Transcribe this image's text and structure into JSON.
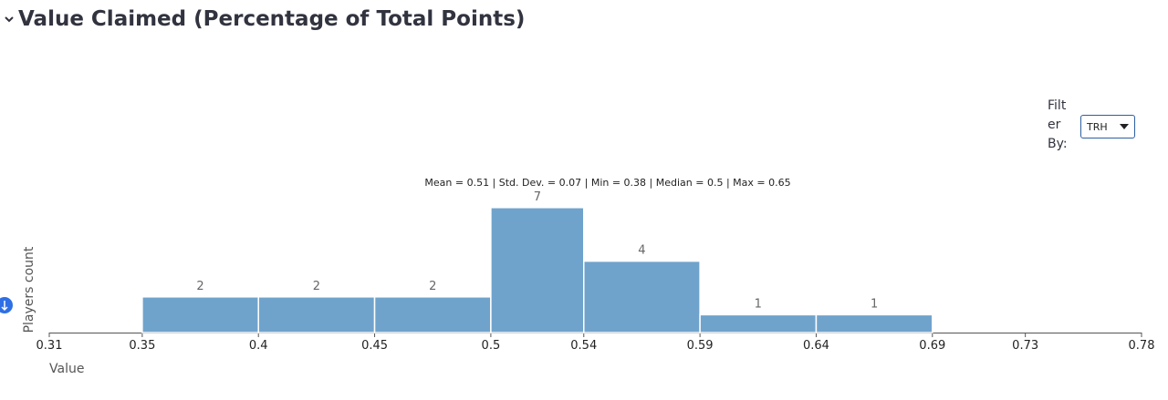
{
  "heading": "Value Claimed (Percentage of Total Points)",
  "filter": {
    "label": "Filter By:",
    "selected": "TRH"
  },
  "chart_data": {
    "type": "histogram",
    "annotation": "Mean = 0.51 | Std. Dev. = 0.07 | Min = 0.38 | Median = 0.5 | Max = 0.65",
    "x_label": "Value",
    "y_label": "Players count",
    "bins": [
      0.35,
      0.4,
      0.45,
      0.5,
      0.54,
      0.59,
      0.64,
      0.69
    ],
    "values": [
      2,
      2,
      2,
      7,
      4,
      1,
      1
    ],
    "color": "#6fa3cc",
    "xlim": [
      0.31,
      0.78
    ],
    "xticks": [
      0.31,
      0.35,
      0.4,
      0.45,
      0.5,
      0.54,
      0.59,
      0.64,
      0.69,
      0.73,
      0.78
    ],
    "ylim": [
      0,
      7.5
    ]
  }
}
